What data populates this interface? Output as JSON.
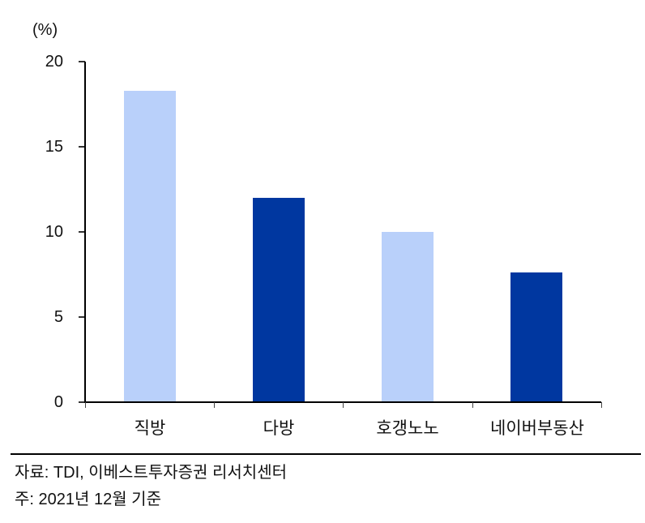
{
  "chart_data": {
    "type": "bar",
    "title": "",
    "xlabel": "",
    "ylabel": "(%)",
    "ylim": [
      0,
      20
    ],
    "yticks": [
      0,
      5,
      10,
      15,
      20
    ],
    "grid": false,
    "legend": null,
    "categories": [
      "직방",
      "다방",
      "호갱노노",
      "네이버부동산"
    ],
    "values": [
      18.3,
      12.0,
      10.0,
      7.6
    ],
    "colors": [
      "#b9d0fa",
      "#0037a0",
      "#b9d0fa",
      "#0037a0"
    ]
  },
  "axis": {
    "unit_label": "(%)",
    "yticks": [
      "20",
      "15",
      "10",
      "5",
      "0"
    ]
  },
  "footer": {
    "source": "자료: TDI, 이베스트투자증권 리서치센터",
    "note": "주: 2021년 12월 기준"
  }
}
